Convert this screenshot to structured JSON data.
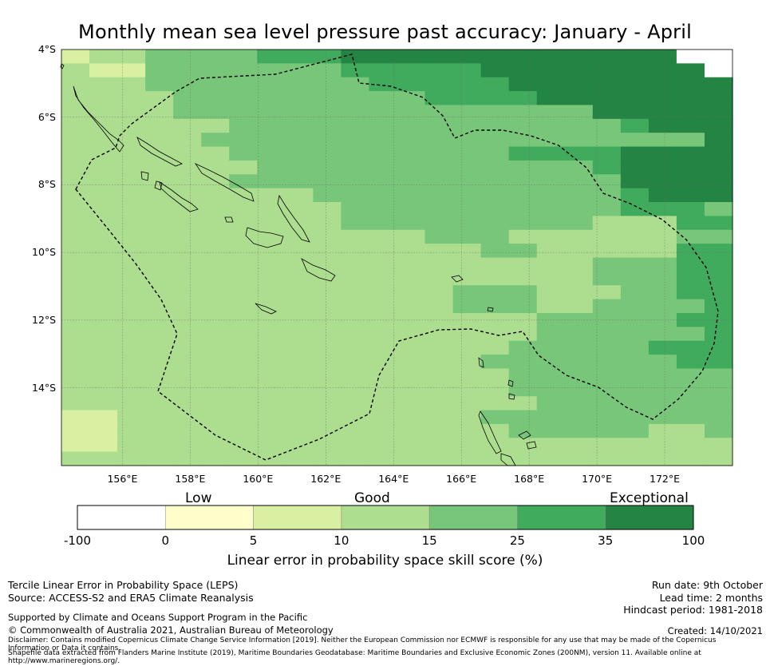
{
  "title": "Monthly mean sea level pressure past accuracy: January - April",
  "map": {
    "lat_labels": [
      "4°S",
      "6°S",
      "8°S",
      "10°S",
      "12°S",
      "14°S"
    ],
    "lon_labels": [
      "156°E",
      "158°E",
      "160°E",
      "162°E",
      "164°E",
      "166°E",
      "168°E",
      "170°E",
      "172°E"
    ],
    "lon_range": [
      154.2,
      174.0
    ],
    "lat_range": [
      -4.0,
      -16.3
    ],
    "grid_step_deg": 0.833,
    "grid_rows": [
      "233334444444455555566666666666666666666666610000",
      "322224444444444444455555555556666666666666666000",
      "333334444444444444444455555555566666666666666666",
      "333333344444444444444444455555555666666666666666",
      "333333334444444444444444444444444444466666666666",
      "333333333334444444444444444444444444444456666666",
      "333333333444444444444444444444444444444444444666",
      "333333333334444444444444444444445555555566666666",
      "333333333333344444444444444444444444445566666666",
      "333333333333444444444444444444444444444566666666",
      "333333333333333334444444444444444444444556666664",
      "333333333333333333344444444444444444444555555444",
      "333333333333333333334444444444444444443333335555",
      "333333333333333333333333334444443333333333344444",
      "333333333333333333333333333334444433333333335555",
      "333333333333333333333333333333333333344444445555",
      "333333333333333333333333333333333333334444455555",
      "333333333333333333333333333344444333333444455555",
      "333333333333333333333333333344444333344444444555",
      "333333333333333333333333333333333344444444445555",
      "333333333333333333333333333333333444444444444555",
      "333333333333333333333333333333334444444444555555",
      "333333333333333333333333333333444444444444455554",
      "333333333333333333333333333333344444444444444444",
      "333333333333333333333333333333334444444444444444",
      "333333333333333333333333333333333444444444444444",
      "222333333333333333333333333333444444444444444444",
      "222233333333333333333333333333334444444443333344",
      "22223333333333333333333333333333333333333333333",
      "3333333333333333333333333333333333333333333333333"
    ]
  },
  "colorbar": {
    "category_labels": [
      "Low",
      "Good",
      "Exceptional"
    ],
    "tick_labels": [
      "-100",
      "0",
      "5",
      "10",
      "15",
      "25",
      "35",
      "100"
    ],
    "colors": [
      "#ffffff",
      "#ffffcc",
      "#d9f0a3",
      "#addd8e",
      "#78c679",
      "#41ab5d",
      "#238443"
    ],
    "title": "Linear error in probability space skill score (%)"
  },
  "footer": {
    "left_line1": "Tercile Linear Error in Probability Space (LEPS)",
    "left_line2": "Source: ACCESS-S2 and ERA5 Climate Reanalysis",
    "right_line1": "Run date: 9th October",
    "right_line2": "Lead time: 2 months",
    "right_line3": "Hindcast period: 1981-2018",
    "supported": "Supported by Climate and Oceans Support Program in the Pacific",
    "copyright": "© Commonwealth of Australia 2021, Australian Bureau of Meteorology",
    "created": "Created: 14/10/2021",
    "disclaimer1": "Disclaimer: Contains modified Copernicus Climate Change Service Information [2019]. Neither the European Commission nor ECMWF is responsible for any use that may be made of the Copernicus",
    "disclaimer2": "Information or Data it contains.",
    "disclaimer3": "Shapefile data extracted from Flanders Marine Institute (2019), Maritime Boundaries Geodatabase: Maritime Boundaries and Exclusive Economic Zones (200NM), version 11. Available online at",
    "disclaimer4": "http://www.marineregions.org/."
  }
}
